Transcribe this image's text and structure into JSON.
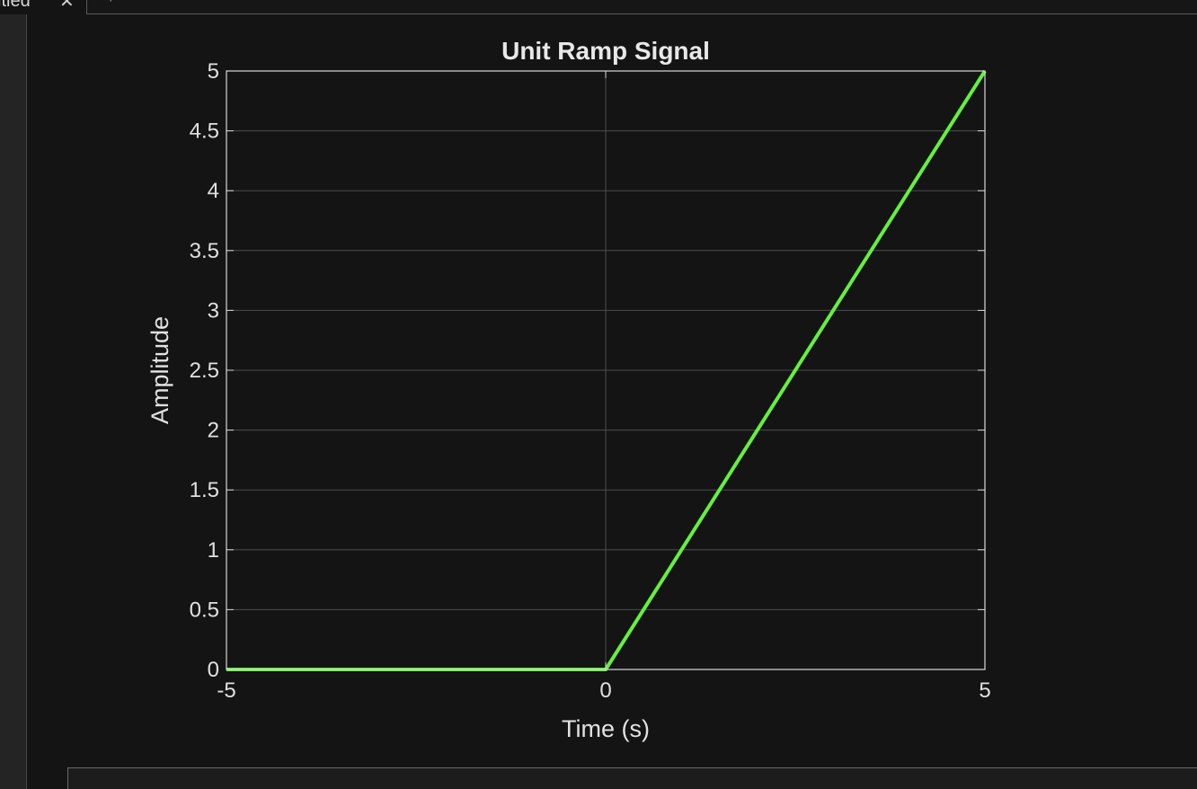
{
  "tab": {
    "label": "itled",
    "close_glyph": "✕",
    "add_glyph": "+"
  },
  "colors": {
    "background": "#141414",
    "axes_background": "#141414",
    "axes_box": "#d9d9d9",
    "grid": "#4d4d4d",
    "series": "#66ee44",
    "text": "#e0e0e0"
  },
  "chart_data": {
    "type": "line",
    "title": "Unit Ramp Signal",
    "xlabel": "Time (s)",
    "ylabel": "Amplitude",
    "xlim": [
      -5,
      5
    ],
    "ylim": [
      0,
      5
    ],
    "xticks": [
      -5,
      0,
      5
    ],
    "xtick_labels": [
      "-5",
      "0",
      "5"
    ],
    "yticks": [
      0,
      0.5,
      1,
      1.5,
      2,
      2.5,
      3,
      3.5,
      4,
      4.5,
      5
    ],
    "ytick_labels": [
      "0",
      "0.5",
      "1",
      "1.5",
      "2",
      "2.5",
      "3",
      "3.5",
      "4",
      "4.5",
      "5"
    ],
    "grid": true,
    "series": [
      {
        "x": [
          -5,
          0,
          5
        ],
        "y": [
          0,
          0,
          5
        ]
      }
    ]
  }
}
